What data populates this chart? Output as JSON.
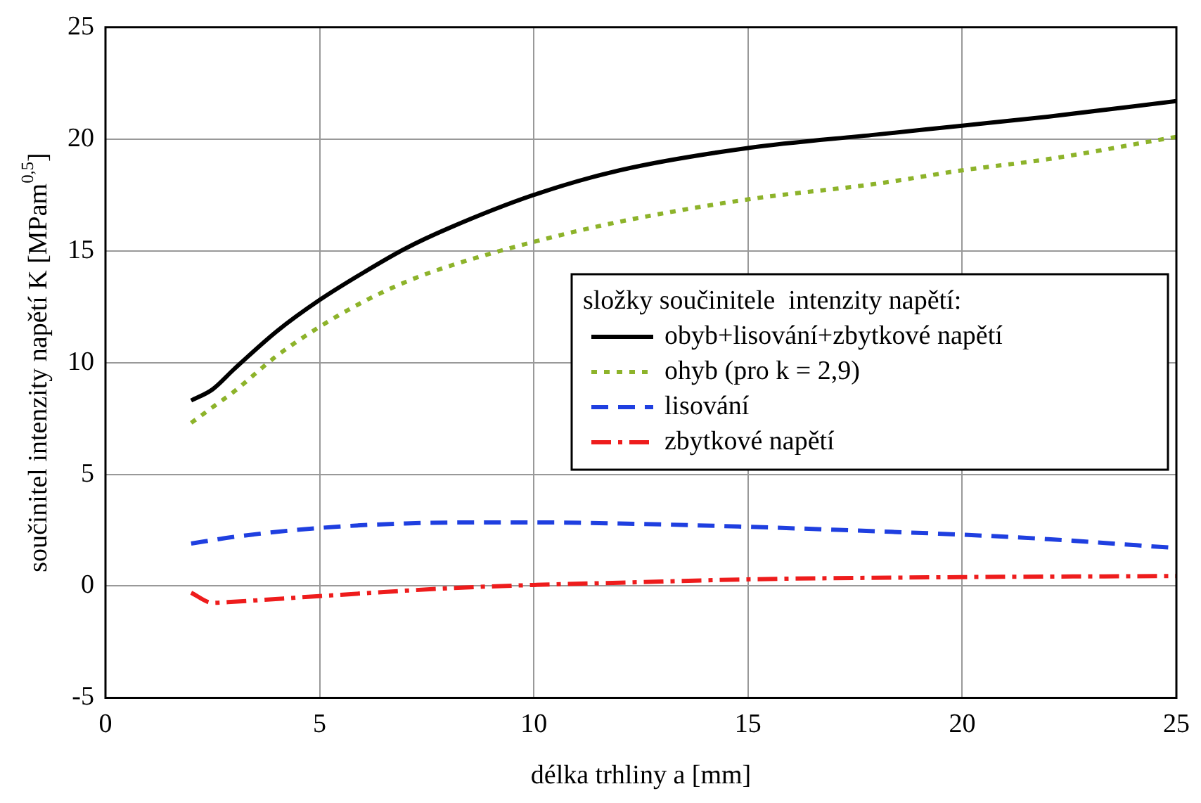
{
  "chart_data": {
    "type": "line",
    "xlabel": "délka trhliny a [mm]",
    "ylabel": "součinitel intenzity napětí K [MPam$^{0,5}$]",
    "legend_title": "složky součinitele  intenzity napětí:",
    "legend": "right",
    "grid": true,
    "marker": "none",
    "xlim": [
      0,
      25
    ],
    "xticks": [
      0,
      5,
      10,
      15,
      20,
      25
    ],
    "ylim": [
      -5,
      25
    ],
    "yticks": [
      -5,
      0,
      5,
      10,
      15,
      20,
      25
    ],
    "series": [
      {
        "name": "obyb+lisování+zbytkové napětí",
        "color": "#000000",
        "line_style": "solid",
        "x": [
          2,
          2.5,
          3,
          4,
          5,
          6,
          7,
          8,
          10,
          12,
          15,
          18,
          20,
          22,
          25
        ],
        "values": [
          8.3,
          8.8,
          9.7,
          11.4,
          12.8,
          14.0,
          15.1,
          16.0,
          17.5,
          18.6,
          19.6,
          20.2,
          20.6,
          21.0,
          21.7
        ]
      },
      {
        "name": "ohyb (pro k = 2,9)",
        "color": "#8db32a",
        "line_style": "dotted",
        "x": [
          2,
          2.5,
          3,
          4,
          5,
          6,
          7,
          8,
          10,
          12,
          15,
          18,
          20,
          22,
          25
        ],
        "values": [
          7.3,
          8.0,
          8.7,
          10.3,
          11.6,
          12.7,
          13.6,
          14.3,
          15.4,
          16.3,
          17.3,
          18.0,
          18.6,
          19.1,
          20.1
        ]
      },
      {
        "name": "lisování",
        "color": "#1f3fe0",
        "line_style": "dashed",
        "x": [
          2,
          3,
          5,
          7,
          9,
          10,
          12,
          15,
          18,
          20,
          22,
          25
        ],
        "values": [
          1.9,
          2.2,
          2.6,
          2.8,
          2.85,
          2.85,
          2.8,
          2.65,
          2.45,
          2.3,
          2.1,
          1.7
        ]
      },
      {
        "name": "zbytkové napětí",
        "color": "#ee1c1c",
        "line_style": "dashdot",
        "x": [
          2,
          2.5,
          3,
          5,
          8,
          10,
          12,
          15,
          20,
          25
        ],
        "values": [
          -0.3,
          -0.75,
          -0.7,
          -0.45,
          -0.1,
          0.05,
          0.15,
          0.3,
          0.4,
          0.45
        ]
      }
    ]
  }
}
